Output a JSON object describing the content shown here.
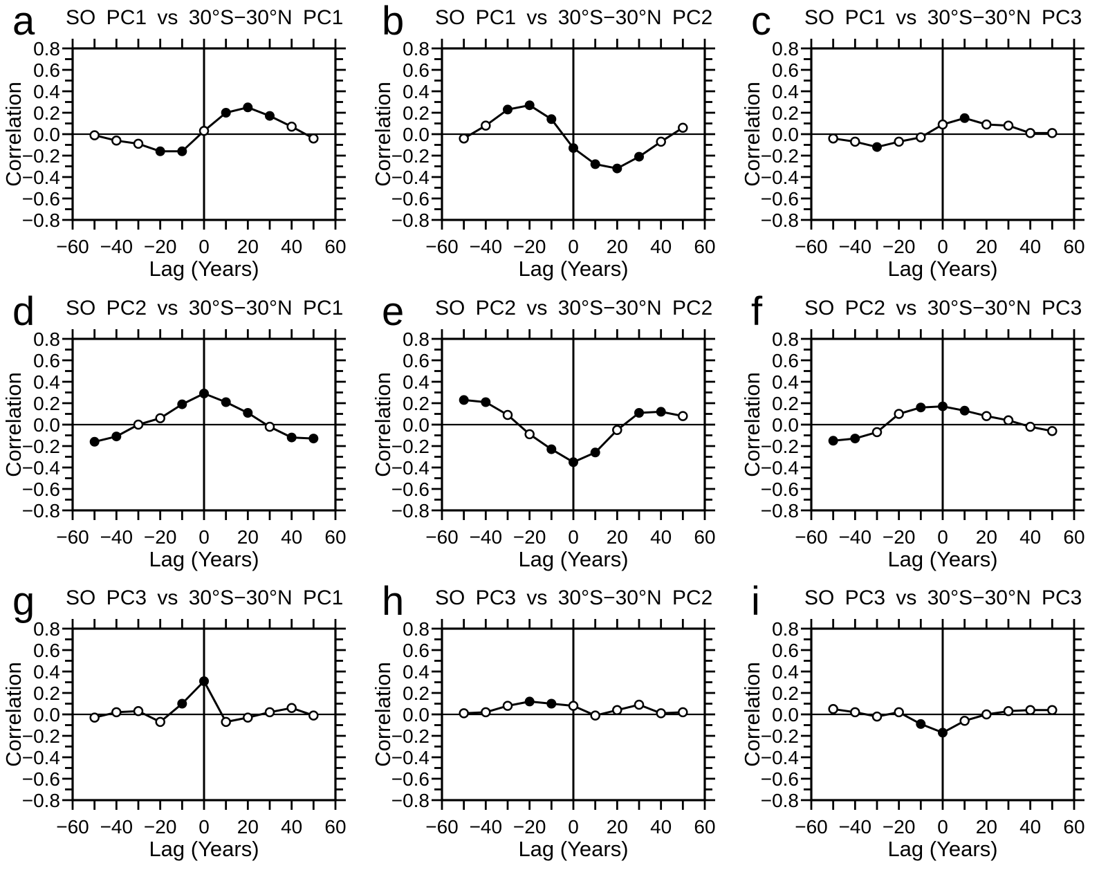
{
  "colors": {
    "ink": "#000000",
    "background": "#ffffff"
  },
  "axes": {
    "xlabel": "Lag (Years)",
    "ylabel": "Correlation",
    "xlim": [
      -60,
      60
    ],
    "ylim": [
      -0.8,
      0.8
    ],
    "x_tick_values": [
      -60,
      -40,
      -20,
      0,
      20,
      40,
      60
    ],
    "x_tick_labels": [
      "−60",
      "−40",
      "−20",
      "0",
      "20",
      "40",
      "60"
    ],
    "x_minor_ticks": [
      -50,
      -30,
      -10,
      10,
      30,
      50
    ],
    "y_tick_values": [
      0.8,
      0.6,
      0.4,
      0.2,
      0.0,
      -0.2,
      -0.4,
      -0.6,
      -0.8
    ],
    "y_tick_labels": [
      "0.8",
      "0.6",
      "0.4",
      "0.2",
      "0.0",
      "−0.2",
      "−0.4",
      "−0.6",
      "−0.8"
    ],
    "y_minor_ticks": [
      0.7,
      0.5,
      0.3,
      0.1,
      -0.1,
      -0.3,
      -0.5,
      -0.7
    ],
    "zero_reference_lines": true,
    "grid": false,
    "marker_filled": "filled-circle",
    "marker_open": "open-circle"
  },
  "chart_data": [
    {
      "type": "line",
      "panel": "a",
      "title": "SO PC1 vs 30°S−30°N PC1",
      "xlabel": "Lag (Years)",
      "ylabel": "Correlation",
      "xlim": [
        -60,
        60
      ],
      "ylim": [
        -0.8,
        0.8
      ],
      "x": [
        -50,
        -40,
        -30,
        -20,
        -10,
        0,
        10,
        20,
        30,
        40,
        50
      ],
      "values": [
        -0.01,
        -0.06,
        -0.09,
        -0.16,
        -0.16,
        0.03,
        0.2,
        0.25,
        0.17,
        0.07,
        -0.04
      ],
      "significant": [
        false,
        false,
        false,
        true,
        true,
        false,
        true,
        true,
        true,
        false,
        false
      ]
    },
    {
      "type": "line",
      "panel": "b",
      "title": "SO PC1 vs 30°S−30°N PC2",
      "xlabel": "Lag (Years)",
      "ylabel": "Correlation",
      "xlim": [
        -60,
        60
      ],
      "ylim": [
        -0.8,
        0.8
      ],
      "x": [
        -50,
        -40,
        -30,
        -20,
        -10,
        0,
        10,
        20,
        30,
        40,
        50
      ],
      "values": [
        -0.04,
        0.08,
        0.23,
        0.27,
        0.14,
        -0.13,
        -0.28,
        -0.32,
        -0.21,
        -0.07,
        0.06
      ],
      "significant": [
        false,
        false,
        true,
        true,
        true,
        true,
        true,
        true,
        true,
        false,
        false
      ]
    },
    {
      "type": "line",
      "panel": "c",
      "title": "SO PC1 vs 30°S−30°N PC3",
      "xlabel": "Lag (Years)",
      "ylabel": "Correlation",
      "xlim": [
        -60,
        60
      ],
      "ylim": [
        -0.8,
        0.8
      ],
      "x": [
        -50,
        -40,
        -30,
        -20,
        -10,
        0,
        10,
        20,
        30,
        40,
        50
      ],
      "values": [
        -0.04,
        -0.07,
        -0.12,
        -0.07,
        -0.03,
        0.09,
        0.15,
        0.09,
        0.08,
        0.01,
        0.01
      ],
      "significant": [
        false,
        false,
        true,
        false,
        false,
        false,
        true,
        false,
        false,
        false,
        false
      ]
    },
    {
      "type": "line",
      "panel": "d",
      "title": "SO PC2 vs 30°S−30°N PC1",
      "xlabel": "Lag (Years)",
      "ylabel": "Correlation",
      "xlim": [
        -60,
        60
      ],
      "ylim": [
        -0.8,
        0.8
      ],
      "x": [
        -50,
        -40,
        -30,
        -20,
        -10,
        0,
        10,
        20,
        30,
        40,
        50
      ],
      "values": [
        -0.16,
        -0.11,
        0.0,
        0.06,
        0.19,
        0.29,
        0.21,
        0.11,
        -0.02,
        -0.12,
        -0.13
      ],
      "significant": [
        true,
        true,
        false,
        false,
        true,
        true,
        true,
        true,
        false,
        true,
        true
      ]
    },
    {
      "type": "line",
      "panel": "e",
      "title": "SO PC2 vs 30°S−30°N PC2",
      "xlabel": "Lag (Years)",
      "ylabel": "Correlation",
      "xlim": [
        -60,
        60
      ],
      "ylim": [
        -0.8,
        0.8
      ],
      "x": [
        -50,
        -40,
        -30,
        -20,
        -10,
        0,
        10,
        20,
        30,
        40,
        50
      ],
      "values": [
        0.23,
        0.21,
        0.09,
        -0.09,
        -0.23,
        -0.35,
        -0.26,
        -0.05,
        0.11,
        0.12,
        0.08
      ],
      "significant": [
        true,
        true,
        false,
        false,
        true,
        true,
        true,
        false,
        true,
        true,
        false
      ]
    },
    {
      "type": "line",
      "panel": "f",
      "title": "SO PC2 vs 30°S−30°N PC3",
      "xlabel": "Lag (Years)",
      "ylabel": "Correlation",
      "xlim": [
        -60,
        60
      ],
      "ylim": [
        -0.8,
        0.8
      ],
      "x": [
        -50,
        -40,
        -30,
        -20,
        -10,
        0,
        10,
        20,
        30,
        40,
        50
      ],
      "values": [
        -0.15,
        -0.13,
        -0.07,
        0.1,
        0.16,
        0.17,
        0.13,
        0.08,
        0.04,
        -0.02,
        -0.06
      ],
      "significant": [
        true,
        true,
        false,
        false,
        true,
        true,
        true,
        false,
        false,
        false,
        false
      ]
    },
    {
      "type": "line",
      "panel": "g",
      "title": "SO PC3 vs 30°S−30°N PC1",
      "xlabel": "Lag (Years)",
      "ylabel": "Correlation",
      "xlim": [
        -60,
        60
      ],
      "ylim": [
        -0.8,
        0.8
      ],
      "x": [
        -50,
        -40,
        -30,
        -20,
        -10,
        0,
        10,
        20,
        30,
        40,
        50
      ],
      "values": [
        -0.03,
        0.02,
        0.03,
        -0.07,
        0.1,
        0.31,
        -0.07,
        -0.03,
        0.02,
        0.06,
        -0.01
      ],
      "significant": [
        false,
        false,
        false,
        false,
        true,
        true,
        false,
        false,
        false,
        false,
        false
      ]
    },
    {
      "type": "line",
      "panel": "h",
      "title": "SO PC3 vs 30°S−30°N PC2",
      "xlabel": "Lag (Years)",
      "ylabel": "Correlation",
      "xlim": [
        -60,
        60
      ],
      "ylim": [
        -0.8,
        0.8
      ],
      "x": [
        -50,
        -40,
        -30,
        -20,
        -10,
        0,
        10,
        20,
        30,
        40,
        50
      ],
      "values": [
        0.01,
        0.02,
        0.08,
        0.12,
        0.1,
        0.08,
        -0.01,
        0.04,
        0.09,
        0.01,
        0.02
      ],
      "significant": [
        false,
        false,
        false,
        true,
        true,
        false,
        false,
        false,
        false,
        false,
        false
      ]
    },
    {
      "type": "line",
      "panel": "i",
      "title": "SO PC3 vs 30°S−30°N PC3",
      "xlabel": "Lag (Years)",
      "ylabel": "Correlation",
      "xlim": [
        -60,
        60
      ],
      "ylim": [
        -0.8,
        0.8
      ],
      "x": [
        -50,
        -40,
        -30,
        -20,
        -10,
        0,
        10,
        20,
        30,
        40,
        50
      ],
      "values": [
        0.05,
        0.02,
        -0.02,
        0.02,
        -0.09,
        -0.17,
        -0.06,
        0.0,
        0.03,
        0.04,
        0.04
      ],
      "significant": [
        false,
        false,
        false,
        false,
        true,
        true,
        false,
        false,
        false,
        false,
        false
      ]
    }
  ]
}
